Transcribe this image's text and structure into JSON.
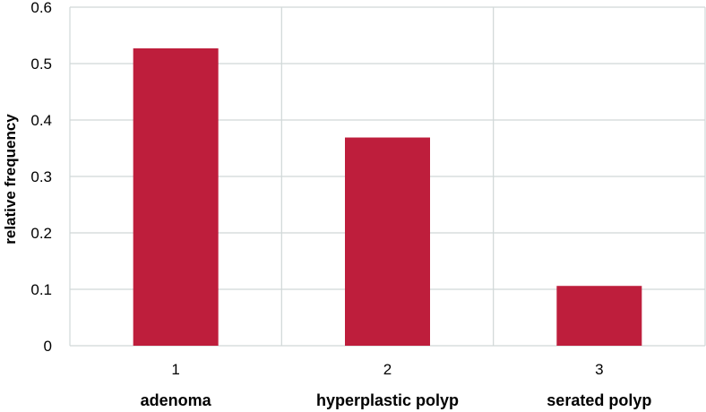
{
  "chart_data": {
    "type": "bar",
    "categories": [
      "1",
      "2",
      "3"
    ],
    "category_names": [
      "adenoma",
      "hyperplastic polyp",
      "serated polyp"
    ],
    "values": [
      0.527,
      0.369,
      0.106
    ],
    "title": "",
    "xlabel": "",
    "ylabel": "relative frequency",
    "ylim": [
      0,
      0.6
    ],
    "yticks": [
      "0",
      "0.1",
      "0.2",
      "0.3",
      "0.4",
      "0.5",
      "0.6"
    ],
    "grid": true,
    "legend": "none",
    "bar_color": "#be1e3c"
  }
}
